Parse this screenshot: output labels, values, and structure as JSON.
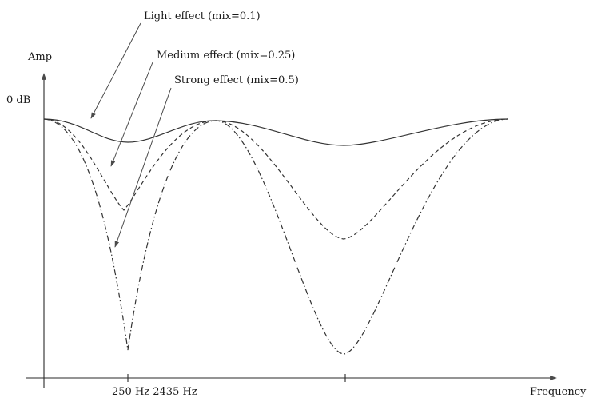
{
  "diagram": {
    "y_axis_label": "Amp",
    "x_axis_label": "Frequency",
    "y_reference_label": "0 dB",
    "x_tick_label": "250 Hz 2435 Hz",
    "annotations": [
      {
        "id": "light",
        "label": "Light effect (mix=0.1)"
      },
      {
        "id": "medium",
        "label": "Medium effect (mix=0.25)"
      },
      {
        "id": "strong",
        "label": "Strong effect (mix=0.5)"
      }
    ],
    "colors": {
      "line": "#333333",
      "axis": "#2a2a2a",
      "background": "#ffffff"
    }
  }
}
